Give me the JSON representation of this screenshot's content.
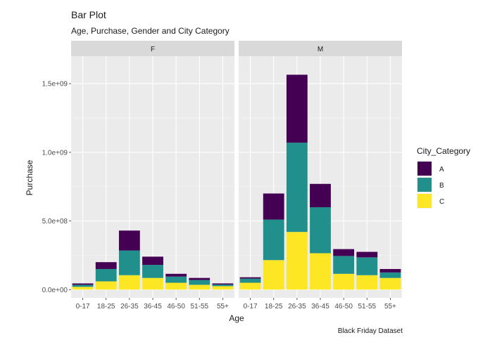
{
  "chart_data": {
    "type": "bar",
    "stacked": true,
    "title": "Bar Plot",
    "subtitle": "Age, Purchase, Gender and City Category",
    "caption": "Black Friday Dataset",
    "xlabel": "Age",
    "ylabel": "Purchase",
    "ylim": [
      -60000000,
      1700000000
    ],
    "yticks": [
      0,
      500000000,
      1000000000,
      1500000000
    ],
    "ytick_labels": [
      "0.0e+00",
      "5.0e+08",
      "1.0e+09",
      "1.5e+09"
    ],
    "categories": [
      "0-17",
      "18-25",
      "26-35",
      "36-45",
      "46-50",
      "51-55",
      "55+"
    ],
    "grid": true,
    "legend": {
      "title": "City_Category",
      "position": "right",
      "entries": [
        "A",
        "B",
        "C"
      ]
    },
    "stack_order_bottom_to_top": [
      "C",
      "B",
      "A"
    ],
    "colors": {
      "A": "#440154",
      "B": "#21908C",
      "C": "#FDE725"
    },
    "panels": [
      {
        "label": "F",
        "series": [
          {
            "name": "A",
            "values": [
              10000000,
              50000000,
              145000000,
              60000000,
              20000000,
              15000000,
              8000000
            ]
          },
          {
            "name": "B",
            "values": [
              15000000,
              90000000,
              180000000,
              95000000,
              45000000,
              35000000,
              12000000
            ]
          },
          {
            "name": "C",
            "values": [
              20000000,
              60000000,
              105000000,
              85000000,
              50000000,
              35000000,
              25000000
            ]
          }
        ]
      },
      {
        "label": "M",
        "series": [
          {
            "name": "A",
            "values": [
              10000000,
              190000000,
              495000000,
              170000000,
              50000000,
              40000000,
              25000000
            ]
          },
          {
            "name": "B",
            "values": [
              30000000,
              295000000,
              650000000,
              335000000,
              130000000,
              130000000,
              40000000
            ]
          },
          {
            "name": "C",
            "values": [
              50000000,
              215000000,
              420000000,
              265000000,
              115000000,
              105000000,
              85000000
            ]
          }
        ]
      }
    ]
  }
}
